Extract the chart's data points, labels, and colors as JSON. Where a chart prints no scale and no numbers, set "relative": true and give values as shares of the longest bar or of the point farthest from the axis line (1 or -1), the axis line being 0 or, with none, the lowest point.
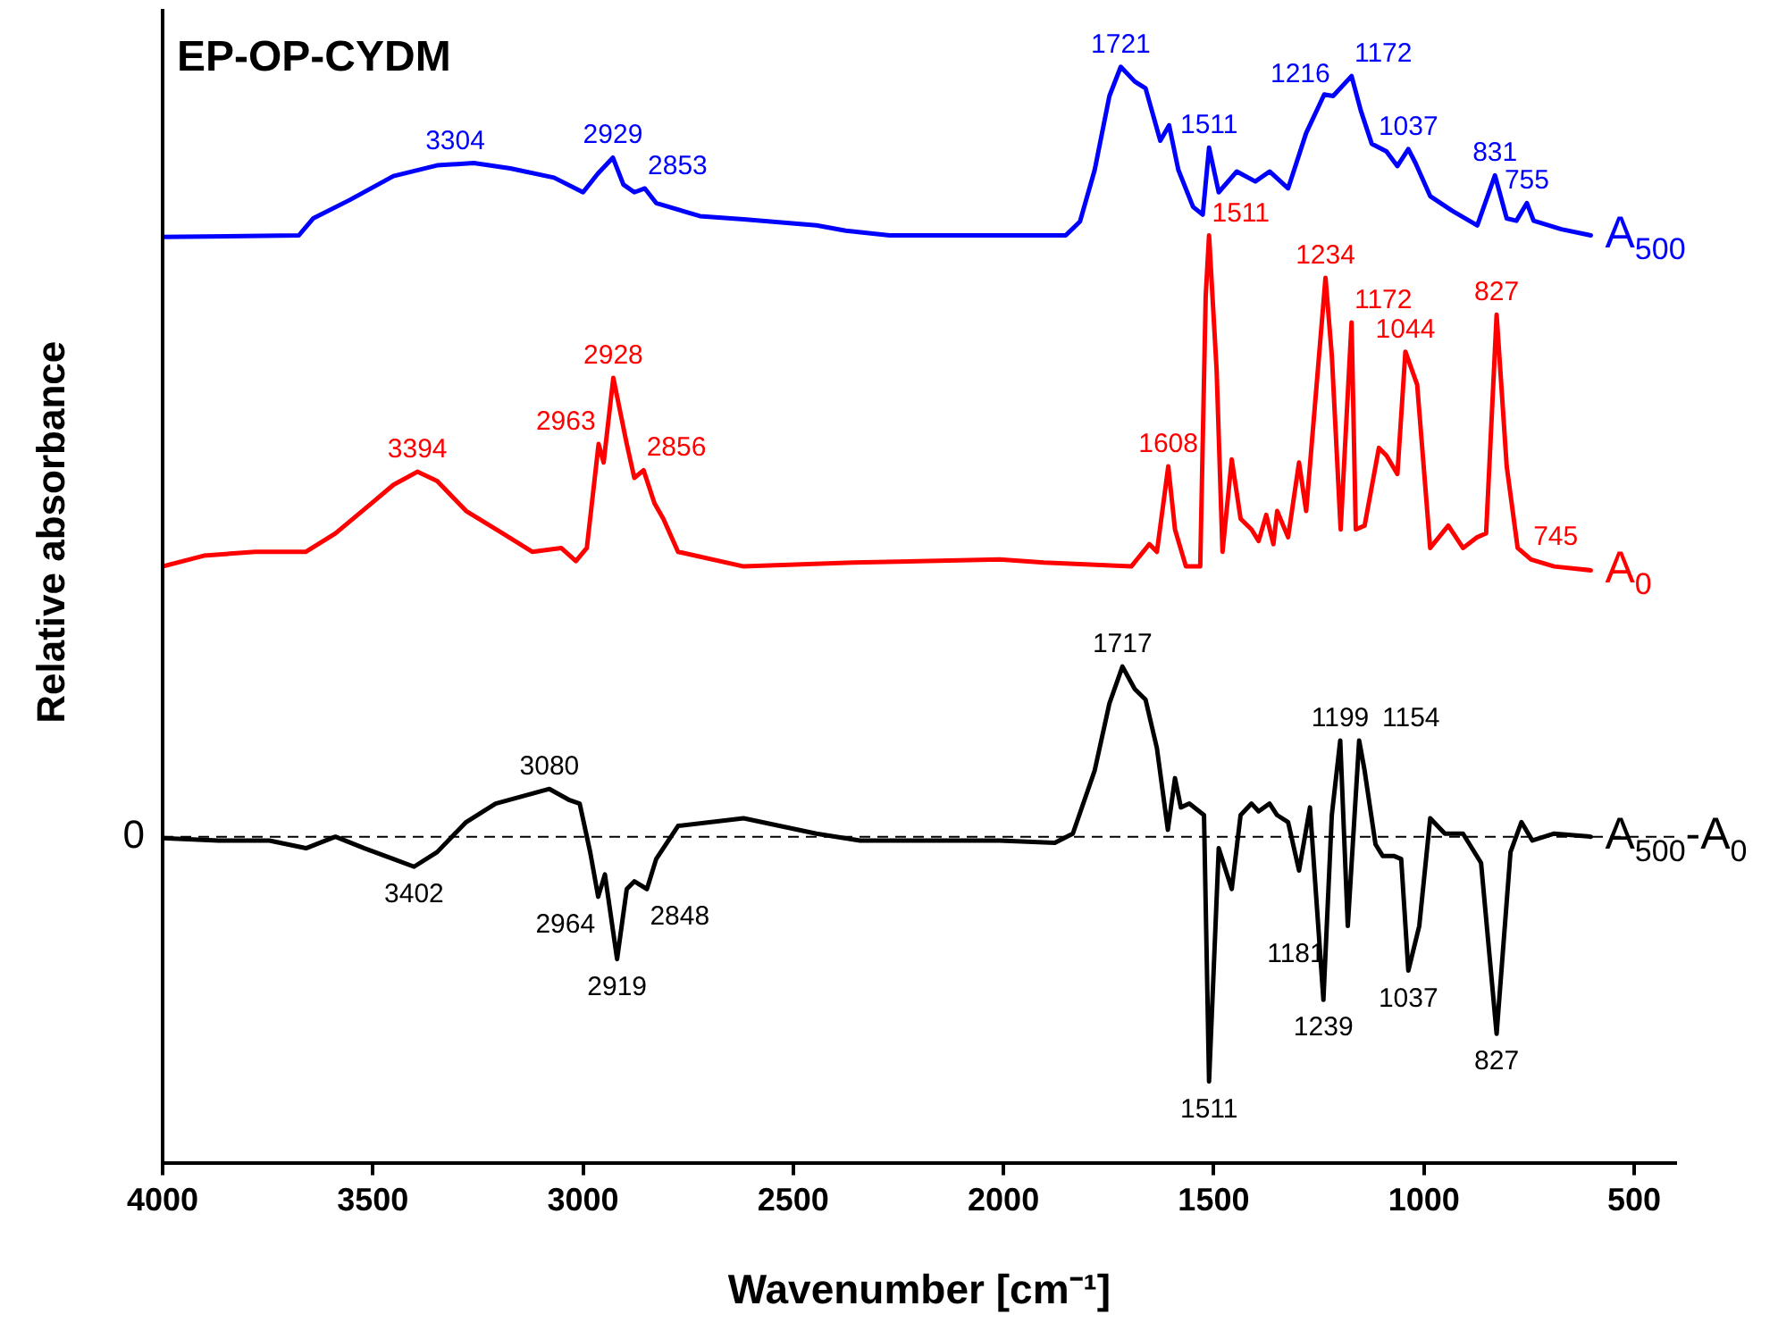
{
  "chart_data": {
    "type": "line",
    "title": "EP-OP-CYDM",
    "xlabel": "Wavenumber [cm⁻¹]",
    "ylabel": "Relative absorbance",
    "relative": true,
    "legend": false,
    "grid": false,
    "marker": "none",
    "line_style": "solid",
    "xlim": [
      4000,
      400
    ],
    "xticks": [
      4000,
      3500,
      3000,
      2500,
      2000,
      1500,
      1000,
      500
    ],
    "ref_lines": [
      {
        "axis": "y",
        "value": 0,
        "label": "0",
        "color": "#000000",
        "line_style": "dashed"
      }
    ],
    "series": [
      {
        "name": "A$_{500}$",
        "color": "#0000ff",
        "x": [
          4000,
          3676,
          3642,
          3555,
          3451,
          3347,
          3260,
          3173,
          3069,
          3000,
          2965,
          2929,
          2904,
          2878,
          2853,
          2826,
          2722,
          2618,
          2445,
          2375,
          2271,
          2009,
          1852,
          1818,
          1783,
          1748,
          1721,
          1688,
          1662,
          1627,
          1606,
          1584,
          1549,
          1526,
          1511,
          1488,
          1445,
          1401,
          1367,
          1323,
          1280,
          1237,
          1216,
          1172,
          1150,
          1124,
          1089,
          1063,
          1037,
          1020,
          985,
          933,
          873,
          831,
          803,
          780,
          755,
          739,
          673,
          603
        ],
        "values": [
          0.779,
          0.781,
          0.803,
          0.827,
          0.858,
          0.872,
          0.875,
          0.868,
          0.856,
          0.837,
          0.861,
          0.882,
          0.847,
          0.837,
          0.842,
          0.823,
          0.806,
          0.802,
          0.794,
          0.787,
          0.781,
          0.781,
          0.781,
          0.799,
          0.866,
          0.962,
          1.0,
          0.981,
          0.972,
          0.904,
          0.924,
          0.866,
          0.818,
          0.808,
          0.895,
          0.837,
          0.864,
          0.851,
          0.864,
          0.842,
          0.914,
          0.964,
          0.962,
          0.988,
          0.943,
          0.9,
          0.89,
          0.871,
          0.893,
          0.875,
          0.832,
          0.813,
          0.794,
          0.859,
          0.803,
          0.8,
          0.823,
          0.8,
          0.789,
          0.781
        ]
      },
      {
        "name": "A$_{0}$",
        "color": "#ff0000",
        "x": [
          4000,
          3902,
          3780,
          3659,
          3589,
          3503,
          3451,
          3394,
          3347,
          3278,
          3191,
          3121,
          3052,
          3017,
          2991,
          2963,
          2951,
          2928,
          2896,
          2878,
          2856,
          2830,
          2809,
          2774,
          2618,
          2358,
          2009,
          1904,
          1696,
          1653,
          1635,
          1608,
          1592,
          1566,
          1532,
          1519,
          1511,
          1493,
          1479,
          1457,
          1436,
          1410,
          1393,
          1375,
          1358,
          1349,
          1323,
          1297,
          1280,
          1234,
          1219,
          1198,
          1172,
          1162,
          1141,
          1107,
          1089,
          1063,
          1044,
          1016,
          985,
          942,
          907,
          873,
          852,
          827,
          803,
          777,
          745,
          690,
          603
        ],
        "values": [
          0.351,
          0.365,
          0.37,
          0.37,
          0.394,
          0.433,
          0.457,
          0.474,
          0.462,
          0.423,
          0.394,
          0.37,
          0.375,
          0.358,
          0.375,
          0.51,
          0.486,
          0.596,
          0.51,
          0.466,
          0.476,
          0.433,
          0.413,
          0.37,
          0.351,
          0.356,
          0.36,
          0.356,
          0.351,
          0.38,
          0.37,
          0.481,
          0.399,
          0.351,
          0.351,
          0.702,
          0.781,
          0.606,
          0.37,
          0.49,
          0.413,
          0.399,
          0.384,
          0.418,
          0.38,
          0.423,
          0.389,
          0.486,
          0.423,
          0.726,
          0.625,
          0.399,
          0.668,
          0.399,
          0.404,
          0.505,
          0.495,
          0.471,
          0.63,
          0.587,
          0.375,
          0.404,
          0.375,
          0.389,
          0.394,
          0.678,
          0.481,
          0.375,
          0.36,
          0.351,
          0.346
        ]
      },
      {
        "name": "A$_{500}$-A$_{0}$",
        "color": "#000000",
        "x": [
          4000,
          3867,
          3746,
          3659,
          3589,
          3520,
          3451,
          3402,
          3347,
          3278,
          3208,
          3080,
          3034,
          3008,
          2983,
          2964,
          2948,
          2919,
          2896,
          2878,
          2848,
          2826,
          2774,
          2618,
          2445,
          2341,
          2009,
          1878,
          1835,
          1783,
          1748,
          1717,
          1688,
          1662,
          1635,
          1609,
          1592,
          1578,
          1558,
          1523,
          1511,
          1488,
          1457,
          1436,
          1410,
          1393,
          1367,
          1349,
          1323,
          1297,
          1271,
          1239,
          1219,
          1199,
          1181,
          1154,
          1141,
          1115,
          1098,
          1072,
          1054,
          1037,
          1011,
          985,
          950,
          907,
          864,
          827,
          794,
          768,
          742,
          690,
          603
        ],
        "values": [
          -0.002,
          -0.005,
          -0.005,
          -0.015,
          0.0,
          -0.015,
          -0.029,
          -0.039,
          -0.02,
          0.019,
          0.043,
          0.062,
          0.048,
          0.043,
          -0.02,
          -0.078,
          -0.049,
          -0.159,
          -0.068,
          -0.058,
          -0.068,
          -0.029,
          0.014,
          0.024,
          0.004,
          -0.005,
          -0.005,
          -0.008,
          0.004,
          0.086,
          0.173,
          0.221,
          0.192,
          0.178,
          0.115,
          0.009,
          0.076,
          0.038,
          0.043,
          0.028,
          -0.318,
          -0.015,
          -0.068,
          0.028,
          0.043,
          0.033,
          0.043,
          0.028,
          0.019,
          -0.044,
          0.038,
          -0.212,
          0.028,
          0.125,
          -0.116,
          0.125,
          0.086,
          -0.01,
          -0.025,
          -0.025,
          -0.029,
          -0.174,
          -0.116,
          0.024,
          0.004,
          0.004,
          -0.034,
          -0.256,
          -0.02,
          0.019,
          -0.005,
          0.004,
          0.0
        ]
      }
    ],
    "annotations": [
      {
        "text": "3304",
        "x": 3304,
        "y": 0.874
      },
      {
        "text": "2929",
        "x": 2929,
        "y": 0.882
      },
      {
        "text": "2853",
        "x": 2853,
        "y": 0.842
      },
      {
        "text": "1721",
        "x": 1721,
        "y": 1.0
      },
      {
        "text": "1511",
        "x": 1511,
        "y": 0.895
      },
      {
        "text": "1216",
        "x": 1216,
        "y": 0.962
      },
      {
        "text": "1172",
        "x": 1172,
        "y": 0.988
      },
      {
        "text": "1037",
        "x": 1037,
        "y": 0.893
      },
      {
        "text": "831",
        "x": 831,
        "y": 0.859
      },
      {
        "text": "755",
        "x": 755,
        "y": 0.823
      },
      {
        "text": "3394",
        "x": 3394,
        "y": 0.474
      },
      {
        "text": "2963",
        "x": 2963,
        "y": 0.51
      },
      {
        "text": "2928",
        "x": 2928,
        "y": 0.596
      },
      {
        "text": "2856",
        "x": 2856,
        "y": 0.476
      },
      {
        "text": "1608",
        "x": 1608,
        "y": 0.481
      },
      {
        "text": "1511",
        "x": 1511,
        "y": 0.781
      },
      {
        "text": "1234",
        "x": 1234,
        "y": 0.726
      },
      {
        "text": "1172",
        "x": 1172,
        "y": 0.668
      },
      {
        "text": "1044",
        "x": 1044,
        "y": 0.63
      },
      {
        "text": "827",
        "x": 827,
        "y": 0.678
      },
      {
        "text": "745",
        "x": 745,
        "y": 0.36
      },
      {
        "text": "3402",
        "x": 3402,
        "y": -0.039
      },
      {
        "text": "3080",
        "x": 3080,
        "y": 0.062
      },
      {
        "text": "2964",
        "x": 2964,
        "y": -0.078
      },
      {
        "text": "2919",
        "x": 2919,
        "y": -0.159
      },
      {
        "text": "2848",
        "x": 2848,
        "y": -0.068
      },
      {
        "text": "1717",
        "x": 1717,
        "y": 0.221
      },
      {
        "text": "1511",
        "x": 1511,
        "y": -0.318
      },
      {
        "text": "1239",
        "x": 1239,
        "y": -0.212
      },
      {
        "text": "1199",
        "x": 1199,
        "y": 0.125
      },
      {
        "text": "1181",
        "x": 1181,
        "y": -0.116
      },
      {
        "text": "1154",
        "x": 1154,
        "y": 0.125
      },
      {
        "text": "1037",
        "x": 1037,
        "y": -0.174
      },
      {
        "text": "827",
        "x": 827,
        "y": -0.256
      }
    ]
  }
}
